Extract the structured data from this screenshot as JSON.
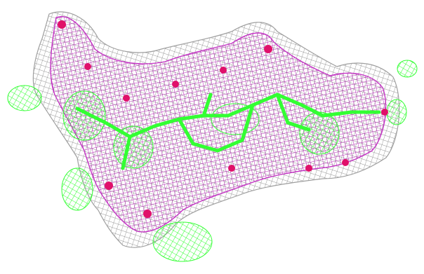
{
  "image": {
    "subject": "electron-density-map-with-ligand",
    "colors": {
      "background": "#ffffff",
      "mesh_gray": "#8c8c8c",
      "mesh_magenta": "#b21fb2",
      "model_green": "#33ff33",
      "atom_pink": "#e0106a"
    }
  }
}
